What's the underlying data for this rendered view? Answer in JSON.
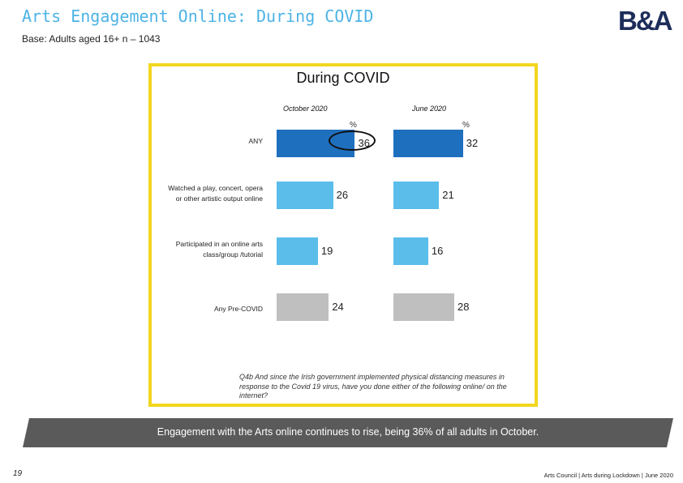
{
  "header": {
    "title": "Arts Engagement Online: During COVID",
    "base": "Base: Adults aged 16+ n – 1043",
    "logo_text": "B&A"
  },
  "chart_data": {
    "type": "bar",
    "orientation": "horizontal",
    "title": "During COVID",
    "unit": "%",
    "categories": [
      "ANY",
      "Watched a play, concert, opera or other artistic output online",
      "Participated in an online arts class/group /tutorial",
      "Any Pre-COVID"
    ],
    "series": [
      {
        "name": "October 2020",
        "values": [
          36,
          26,
          19,
          24
        ]
      },
      {
        "name": "June 2020",
        "values": [
          32,
          21,
          16,
          28
        ]
      }
    ],
    "bar_colors": [
      "#1f6fbf",
      "#5bbdea",
      "#5bbdea",
      "#bfbfbf"
    ],
    "highlight": {
      "series": "October 2020",
      "category": "ANY"
    }
  },
  "labels": {
    "rows": [
      "ANY",
      "Watched a play, concert, opera or other artistic output online",
      "Participated in an online arts class/group /tutorial",
      "Any Pre-COVID"
    ],
    "pct_symbol": "%"
  },
  "question": "Q4b And since the Irish government implemented physical distancing measures in response to the Covid 19 virus, have you done either of the following online/ on the internet?",
  "banner": "Engagement with the Arts online continues to rise, being 36% of all adults in October.",
  "footer": {
    "page_number": "19",
    "text": "Arts Council | Arts during Lockdown | June 2020"
  }
}
